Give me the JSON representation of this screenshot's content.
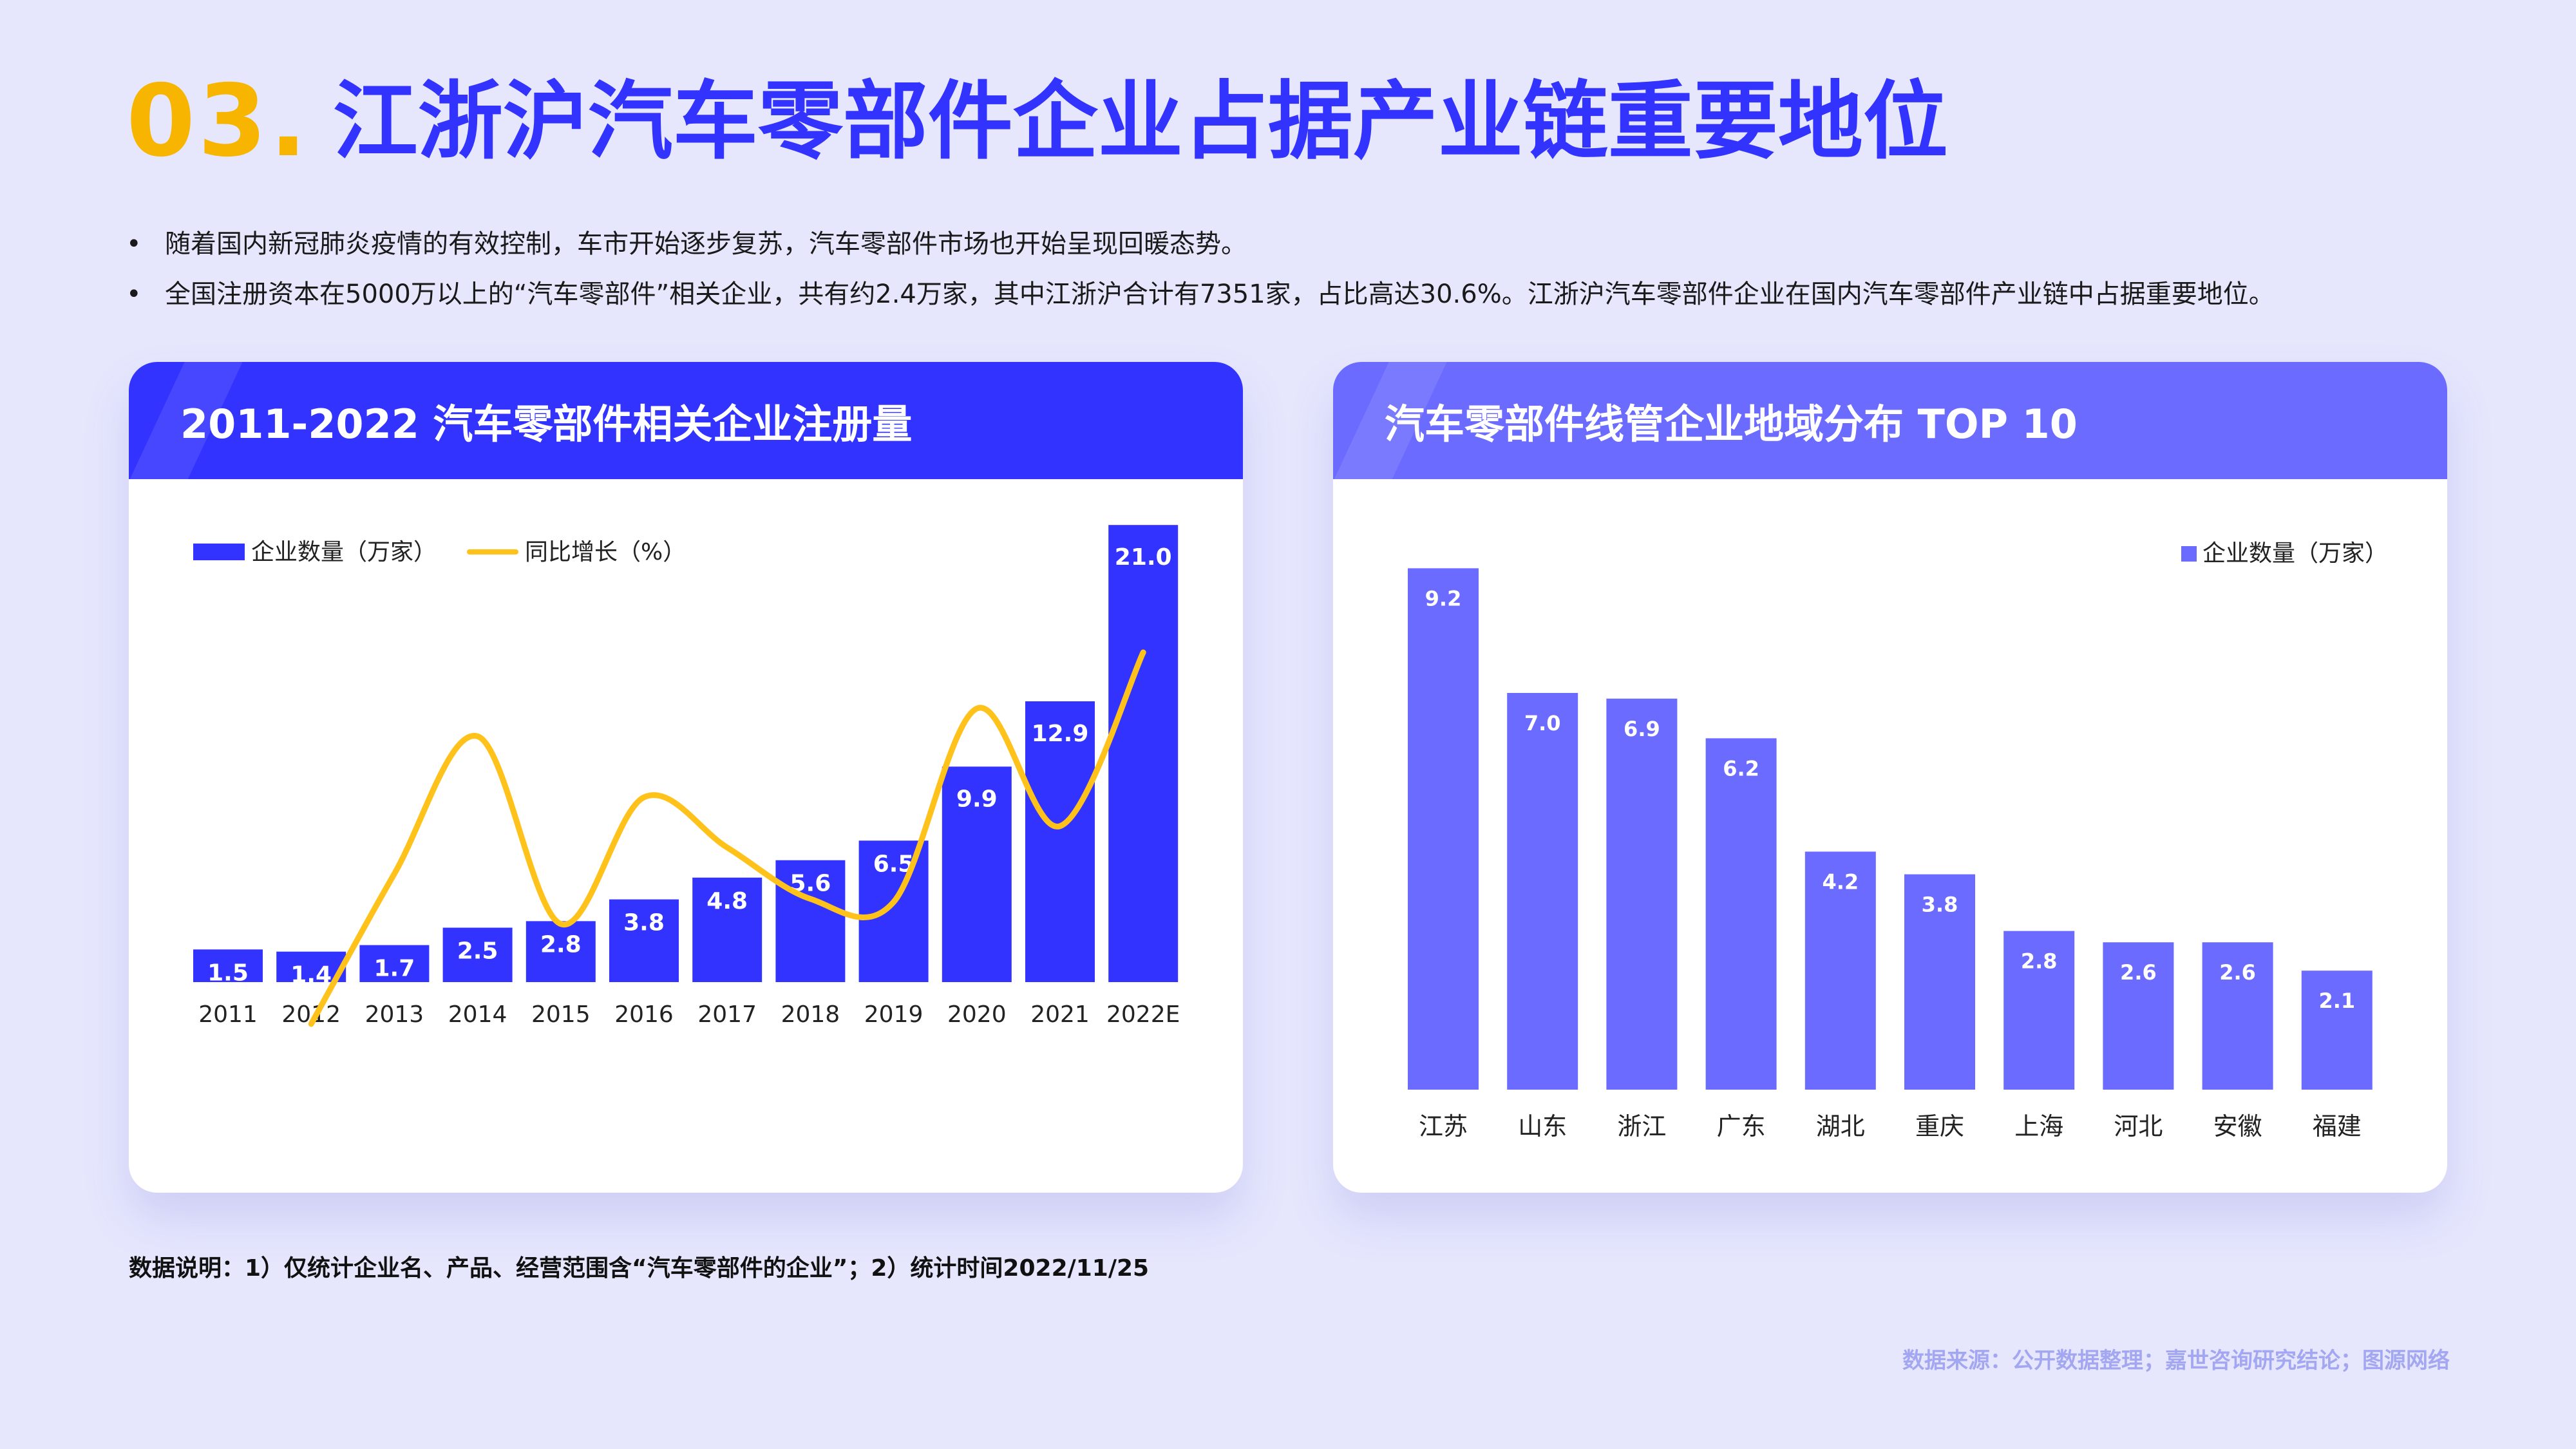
{
  "header": {
    "number": "03.",
    "title": "江浙沪汽车零部件企业占据产业链重要地位"
  },
  "bullets": [
    "随着国内新冠肺炎疫情的有效控制，车市开始逐步复苏，汽车零部件市场也开始呈现回暖态势。",
    "全国注册资本在5000万以上的“汽车零部件”相关企业，共有约2.4万家，其中江浙沪合计有7351家，占比高达30.6%。江浙沪汽车零部件企业在国内汽车零部件产业链中占据重要地位。"
  ],
  "left_card": {
    "title": "2011-2022 汽车零部件相关企业注册量"
  },
  "right_card": {
    "title": "汽车零部件线管企业地域分布 TOP 10"
  },
  "note": "数据说明：1）仅统计企业名、产品、经营范围含“汽车零部件的企业”；2）统计时间2022/11/25",
  "source": "数据来源：公开数据整理；嘉世咨询研究结论；图源网络",
  "colors": {
    "bar_primary": "#3333ff",
    "bar_secondary": "#6b6bff",
    "line": "#ffc21a",
    "accent_number": "#f7b500"
  },
  "chart_data": [
    {
      "type": "bar",
      "categories": [
        "2011",
        "2012",
        "2013",
        "2014",
        "2015",
        "2016",
        "2017",
        "2018",
        "2019",
        "2020",
        "2021",
        "2022E"
      ],
      "series": [
        {
          "name": "企业数量（万家）",
          "type": "bar",
          "values": [
            1.5,
            1.4,
            1.7,
            2.5,
            2.8,
            3.8,
            4.8,
            5.6,
            6.5,
            9.9,
            12.9,
            21.0
          ]
        },
        {
          "name": "同比增长（%）",
          "type": "line",
          "values": [
            null,
            -6.7,
            21.4,
            47.1,
            12.0,
            35.7,
            26.3,
            16.7,
            16.1,
            52.3,
            30.3,
            62.8
          ]
        }
      ],
      "data_labels": [
        "1.5",
        "1.4",
        "1.7",
        "2.5",
        "2.8",
        "3.8",
        "4.8",
        "5.6",
        "6.5",
        "9.9",
        "12.9",
        "21.0"
      ],
      "legend_position": "top-left",
      "grid": false
    },
    {
      "type": "bar",
      "categories": [
        "江苏",
        "山东",
        "浙江",
        "广东",
        "湖北",
        "重庆",
        "上海",
        "河北",
        "安徽",
        "福建"
      ],
      "series": [
        {
          "name": "企业数量（万家）",
          "values": [
            9.2,
            7.0,
            6.9,
            6.2,
            4.2,
            3.8,
            2.8,
            2.6,
            2.6,
            2.1
          ]
        }
      ],
      "data_labels": [
        "9.2",
        "7.0",
        "6.9",
        "6.2",
        "4.2",
        "3.8",
        "2.8",
        "2.6",
        "2.6",
        "2.1"
      ],
      "legend_position": "top-right",
      "grid": false
    }
  ]
}
